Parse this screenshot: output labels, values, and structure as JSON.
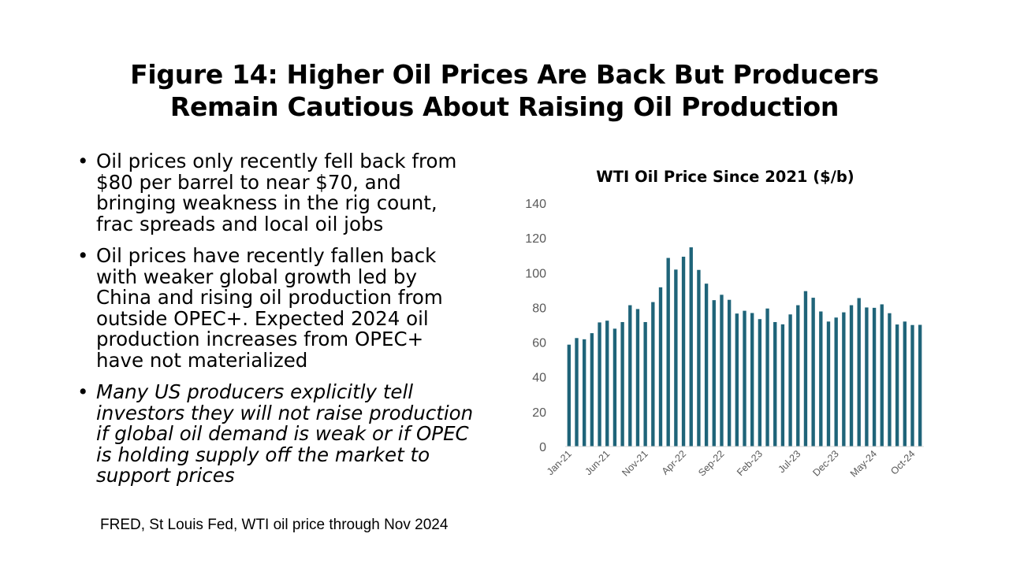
{
  "slide": {
    "title_line1": "Figure 14: Higher Oil Prices Are Back But Producers",
    "title_line2": "Remain Cautious About Raising Oil Production",
    "bullets": [
      {
        "lines": [
          "Oil prices only recently fell back from",
          "$80 per barrel to near $70, and",
          "bringing weakness in the rig count,",
          "frac spreads and local oil jobs"
        ],
        "italic": false
      },
      {
        "lines": [
          "Oil prices have recently fallen back",
          "with weaker global growth led by",
          "China and rising oil production from",
          "outside OPEC+.  Expected 2024 oil",
          "production increases from OPEC+",
          "have not materialized"
        ],
        "italic": false
      },
      {
        "lines": [
          "Many US producers explicitly tell",
          "investors they will not raise production",
          "if global oil demand is weak or if OPEC",
          "is holding supply off the market to",
          "support prices"
        ],
        "italic": true
      }
    ],
    "source": "FRED, St Louis Fed, WTI oil price through Nov 2024"
  },
  "chart_data": {
    "type": "bar",
    "title": "WTI Oil Price Since 2021 ($/b)",
    "xlabel": "",
    "ylabel": "",
    "ylim": [
      0,
      140
    ],
    "yticks": [
      0,
      20,
      40,
      60,
      80,
      100,
      120,
      140
    ],
    "grid": false,
    "legend": "none",
    "bar_color": "#1f6479",
    "categories": [
      "Jan-21",
      "Feb-21",
      "Mar-21",
      "Apr-21",
      "May-21",
      "Jun-21",
      "Jul-21",
      "Aug-21",
      "Sep-21",
      "Oct-21",
      "Nov-21",
      "Dec-21",
      "Jan-22",
      "Feb-22",
      "Mar-22",
      "Apr-22",
      "May-22",
      "Jun-22",
      "Jul-22",
      "Aug-22",
      "Sep-22",
      "Oct-22",
      "Nov-22",
      "Dec-22",
      "Jan-23",
      "Feb-23",
      "Mar-23",
      "Apr-23",
      "May-23",
      "Jun-23",
      "Jul-23",
      "Aug-23",
      "Sep-23",
      "Oct-23",
      "Nov-23",
      "Dec-23",
      "Jan-24",
      "Feb-24",
      "Mar-24",
      "Apr-24",
      "May-24",
      "Jun-24",
      "Jul-24",
      "Aug-24",
      "Sep-24",
      "Oct-24",
      "Nov-24"
    ],
    "visible_tick_labels": [
      "Jan-21",
      "Jun-21",
      "Nov-21",
      "Apr-22",
      "Sep-22",
      "Feb-23",
      "Jul-23",
      "Dec-23",
      "May-24",
      "Oct-24"
    ],
    "values": [
      58.6,
      62.4,
      61.7,
      65.2,
      71.4,
      72.4,
      67.8,
      71.6,
      81.3,
      79.1,
      71.6,
      83.1,
      91.6,
      108.5,
      101.8,
      109.2,
      114.6,
      101.6,
      93.7,
      84.2,
      87.3,
      84.4,
      76.5,
      78.1,
      76.8,
      73.3,
      79.4,
      71.6,
      70.3,
      76.0,
      81.3,
      89.4,
      85.6,
      77.7,
      71.9,
      74.2,
      77.2,
      81.3,
      85.4,
      80.0,
      79.8,
      81.8,
      76.7,
      70.2,
      71.9,
      69.9,
      70.0
    ]
  }
}
